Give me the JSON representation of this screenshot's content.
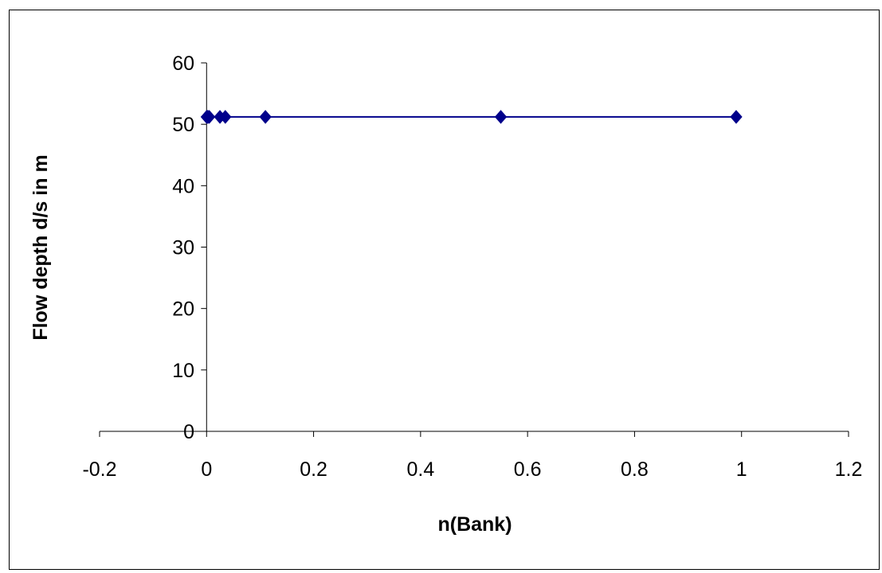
{
  "chart_data": {
    "type": "scatter",
    "title": "",
    "xlabel": "n(Bank)",
    "ylabel": "Flow depth d/s in m",
    "xlim": [
      -0.2,
      1.2
    ],
    "ylim": [
      0,
      60
    ],
    "x_ticks": [
      -0.2,
      0,
      0.2,
      0.4,
      0.6,
      0.8,
      1,
      1.2
    ],
    "x_tick_labels": [
      "-0.2",
      "0",
      "0.2",
      "0.4",
      "0.6",
      "0.8",
      "1",
      "1.2"
    ],
    "y_ticks": [
      0,
      10,
      20,
      30,
      40,
      50,
      60
    ],
    "y_tick_labels": [
      "0",
      "10",
      "20",
      "30",
      "40",
      "50",
      "60"
    ],
    "grid": false,
    "legend": "none",
    "marker": "diamond",
    "connected_line": true,
    "series_color": "#00008B",
    "series": [
      {
        "x": [
          0.0002,
          0.002,
          0.0025,
          0.005,
          0.025,
          0.035,
          0.11,
          0.55,
          0.99
        ],
        "y": [
          51.2,
          51.2,
          51.2,
          51.2,
          51.2,
          51.2,
          51.2,
          51.2,
          51.2
        ]
      }
    ]
  }
}
